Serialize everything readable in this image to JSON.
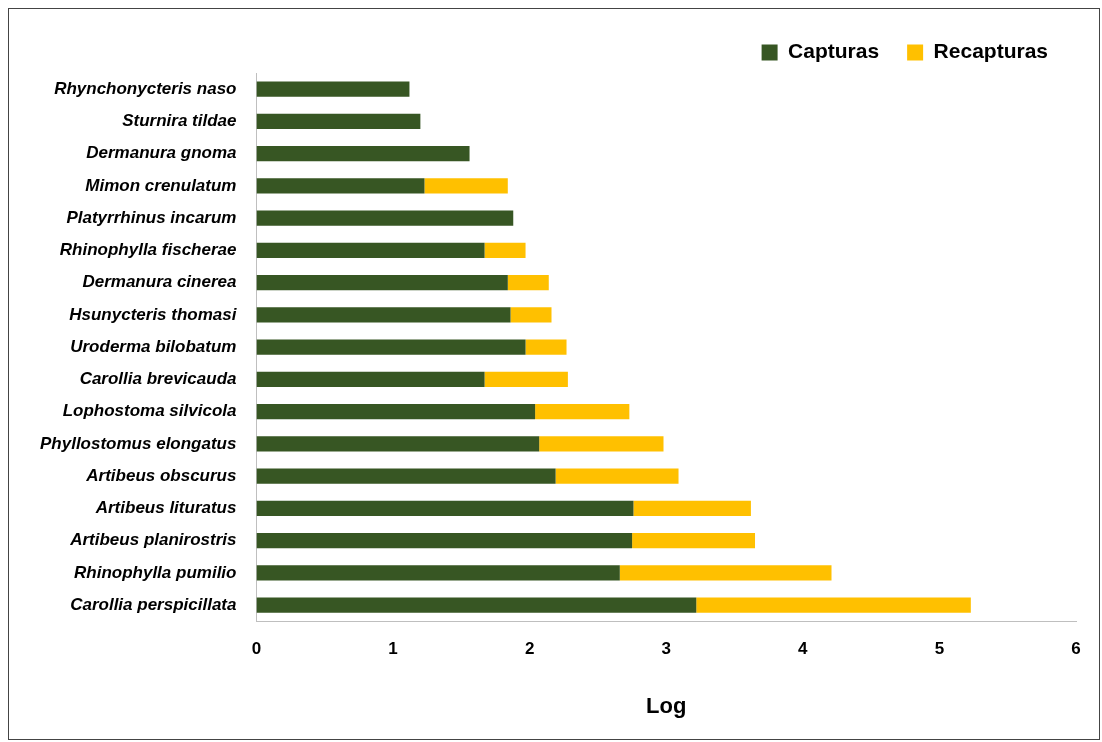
{
  "chart_data": {
    "type": "bar",
    "orientation": "horizontal",
    "stacked": true,
    "xlabel": "Log",
    "categories": [
      "Rhynchonycteris naso",
      "Sturnira tildae",
      "Dermanura gnoma",
      "Mimon crenulatum",
      "Platyrrhinus incarum",
      "Rhinophylla fischerae",
      "Dermanura cinerea",
      "Hsunycteris thomasi",
      "Uroderma bilobatum",
      "Carollia brevicauda",
      "Lophostoma silvicola",
      "Phyllostomus elongatus",
      "Artibeus obscurus",
      "Artibeus lituratus",
      "Artibeus planirostris",
      "Rhinophylla pumilio",
      "Carollia perspicillata"
    ],
    "series": [
      {
        "name": "Capturas",
        "color": "#375623",
        "values": [
          1.12,
          1.2,
          1.56,
          1.23,
          1.88,
          1.67,
          1.84,
          1.86,
          1.97,
          1.67,
          2.04,
          2.07,
          2.19,
          2.76,
          2.75,
          2.66,
          3.22
        ]
      },
      {
        "name": "Recapturas",
        "color": "#ffc000",
        "values": [
          null,
          null,
          null,
          0.61,
          null,
          0.3,
          0.3,
          0.3,
          0.3,
          0.61,
          0.69,
          0.91,
          0.9,
          0.86,
          0.9,
          1.55,
          2.01
        ]
      }
    ],
    "xlim": [
      0,
      6
    ],
    "xticks": [
      0,
      1,
      2,
      3,
      4,
      5,
      6
    ],
    "grid": false,
    "legend": "top right"
  }
}
